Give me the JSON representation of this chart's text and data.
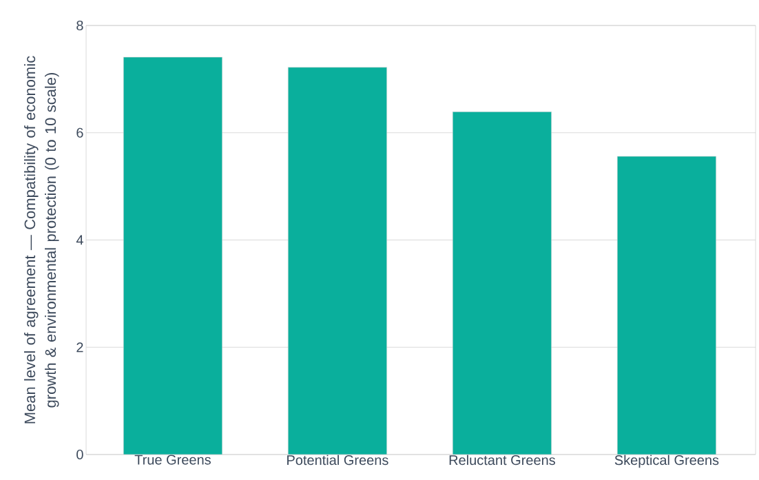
{
  "chart_data": {
    "type": "bar",
    "ylabel": "Mean level of agreement — Compatibility of economic growth & environmental protection (0 to 10 scale)",
    "categories": [
      "True Greens",
      "Potential Greens",
      "Reluctant Greens",
      "Skeptical Greens"
    ],
    "values": [
      7.41,
      7.22,
      6.39,
      5.56
    ],
    "color": "#0aaf9c",
    "ylim": [
      0,
      8
    ],
    "yticks": [
      0,
      2,
      4,
      6,
      8
    ],
    "grid": "y"
  }
}
